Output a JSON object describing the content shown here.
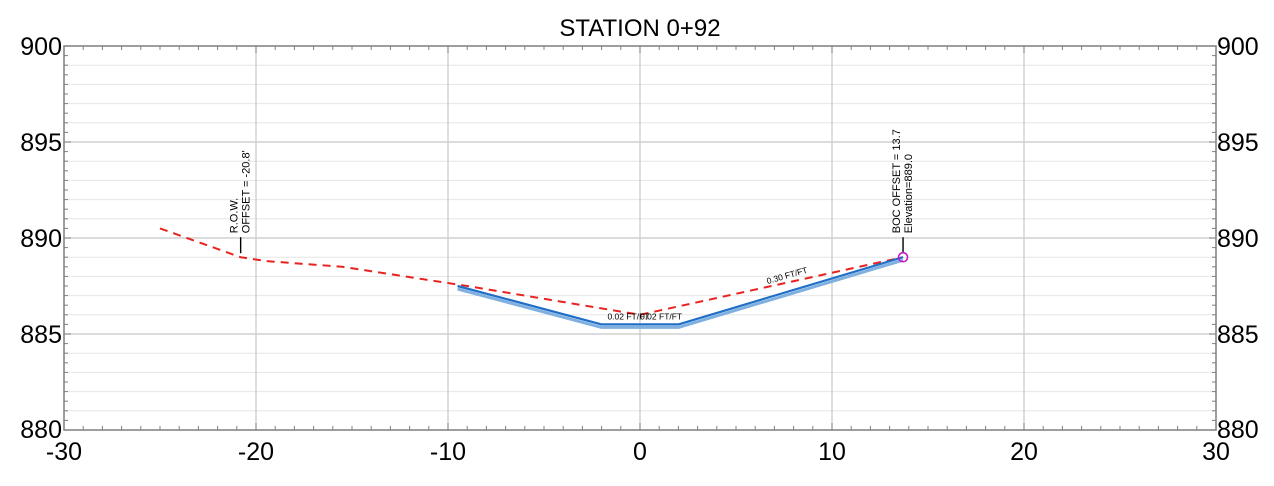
{
  "chart_data": {
    "type": "line",
    "title": "STATION 0+92",
    "xlabel": "",
    "ylabel": "",
    "xlim": [
      -30,
      30
    ],
    "ylim": [
      880,
      900
    ],
    "x_ticks": [
      -30,
      -20,
      -10,
      0,
      10,
      20,
      30
    ],
    "y_ticks": [
      880,
      885,
      890,
      895,
      900
    ],
    "x_tick_labels": [
      "-30",
      "-20",
      "-10",
      "0",
      "10",
      "20",
      "30"
    ],
    "y_tick_labels": [
      "880",
      "885",
      "890",
      "895",
      "900"
    ],
    "grid": true,
    "series": [
      {
        "style": "dashed",
        "color": "#e8231f",
        "points": [
          {
            "x": -25.0,
            "y": 890.5
          },
          {
            "x": -20.8,
            "y": 889.0
          },
          {
            "x": -19.5,
            "y": 888.8
          },
          {
            "x": -15.5,
            "y": 888.5
          },
          {
            "x": -9.0,
            "y": 887.5
          },
          {
            "x": 0.0,
            "y": 886.0
          },
          {
            "x": 13.7,
            "y": 889.0
          }
        ]
      },
      {
        "style": "solid",
        "color": "#1f6fc7",
        "points": [
          {
            "x": -9.5,
            "y": 887.5
          },
          {
            "x": -2.0,
            "y": 885.5
          },
          {
            "x": 2.0,
            "y": 885.5
          },
          {
            "x": 13.7,
            "y": 889.0
          }
        ]
      }
    ],
    "annotations": [
      {
        "lines": [
          "R.O.W.",
          "OFFSET = -20.8'"
        ],
        "x": -20.8,
        "y": 889.0,
        "marker": "tick"
      },
      {
        "lines": [
          "BOC OFFSET = 13.7",
          "Elevation=889.0"
        ],
        "x": 13.7,
        "y": 889.0,
        "marker": "circle",
        "marker_color": "#c418c4"
      },
      {
        "text": "0.02 FT/FT",
        "x": -0.6,
        "y": 885.75
      },
      {
        "text": "0.02 FT/FT",
        "x": 1.1,
        "y": 885.75
      },
      {
        "text": "0.30 FT/FT",
        "x": 7.7,
        "y": 887.9
      }
    ]
  }
}
